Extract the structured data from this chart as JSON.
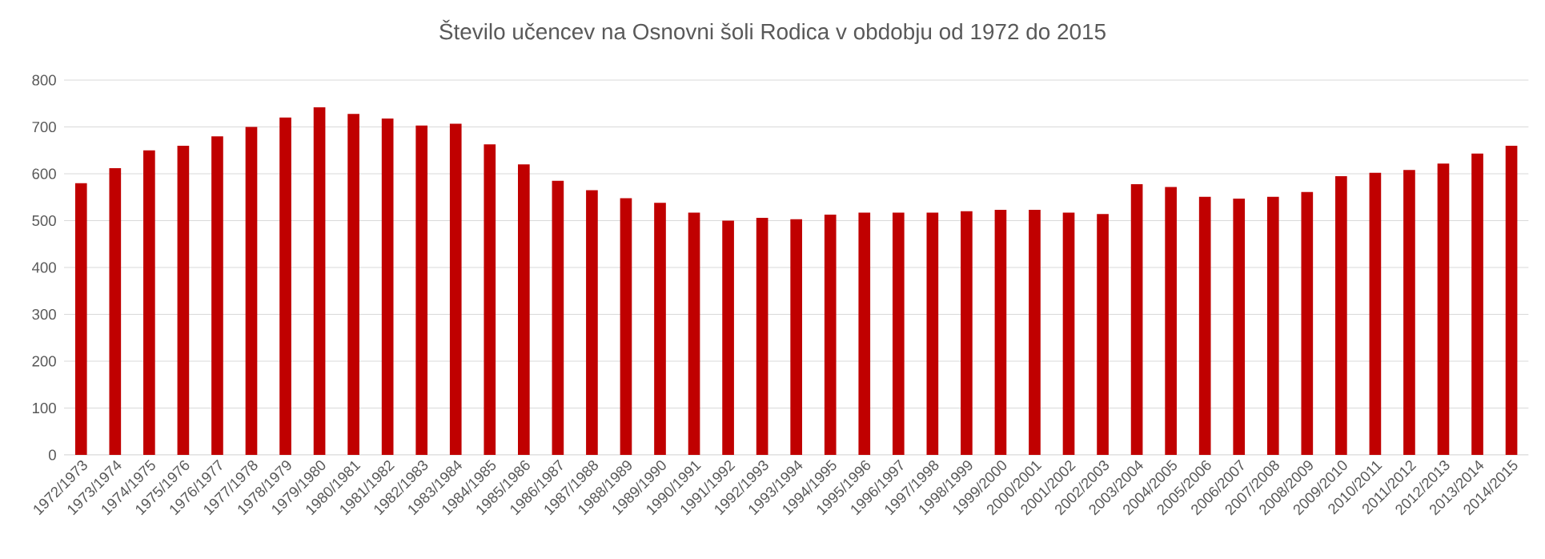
{
  "chart_data": {
    "type": "bar",
    "title": "Število učencev na Osnovni šoli Rodica v obdobju od 1972 do 2015",
    "categories": [
      "1972/1973",
      "1973/1974",
      "1974/1975",
      "1975/1976",
      "1976/1977",
      "1977/1978",
      "1978/1979",
      "1979/1980",
      "1980/1981",
      "1981/1982",
      "1982/1983",
      "1983/1984",
      "1984/1985",
      "1985/1986",
      "1986/1987",
      "1987/1988",
      "1988/1989",
      "1989/1990",
      "1990/1991",
      "1991/1992",
      "1992/1993",
      "1993/1994",
      "1994/1995",
      "1995/1996",
      "1996/1997",
      "1997/1998",
      "1998/1999",
      "1999/2000",
      "2000/2001",
      "2001/2002",
      "2002/2003",
      "2003/2004",
      "2004/2005",
      "2005/2006",
      "2006/2007",
      "2007/2008",
      "2008/2009",
      "2009/2010",
      "2010/2011",
      "2011/2012",
      "2012/2013",
      "2013/2014",
      "2014/2015"
    ],
    "values": [
      580,
      612,
      650,
      660,
      680,
      700,
      720,
      742,
      728,
      718,
      703,
      707,
      663,
      620,
      585,
      565,
      548,
      538,
      517,
      500,
      506,
      503,
      513,
      517,
      517,
      517,
      520,
      523,
      523,
      517,
      514,
      578,
      572,
      551,
      547,
      551,
      561,
      595,
      602,
      608,
      622,
      643,
      660
    ],
    "color": "#c00000",
    "ylim": [
      0,
      800
    ],
    "yticks": [
      0,
      100,
      200,
      300,
      400,
      500,
      600,
      700,
      800
    ],
    "grid": "y"
  }
}
